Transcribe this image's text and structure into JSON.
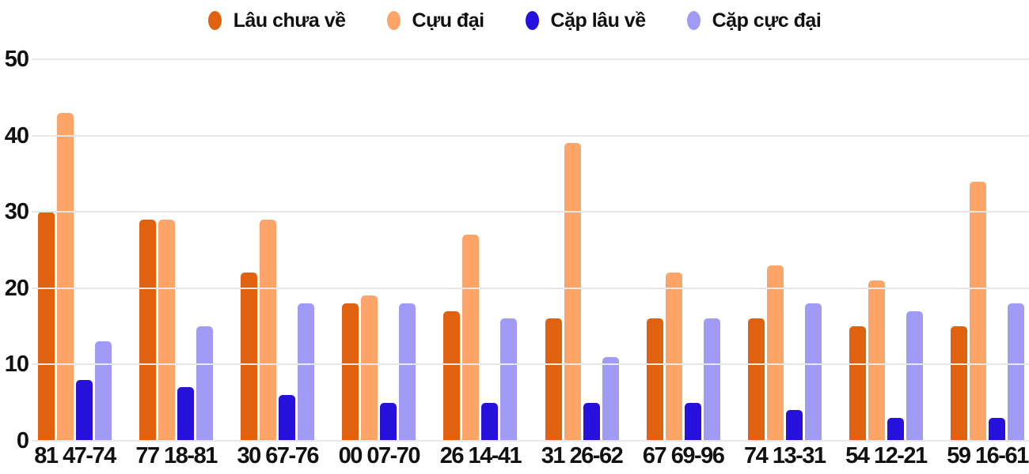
{
  "legend": {
    "items": [
      {
        "label": "Lâu chưa về",
        "color": "#E06210"
      },
      {
        "label": "Cựu đại",
        "color": "#FDA469"
      },
      {
        "label": "Cặp lâu về",
        "color": "#2511DB"
      },
      {
        "label": "Cặp cực đại",
        "color": "#A29BF6"
      }
    ]
  },
  "colors": {
    "grid": "#e7e7e7",
    "text": "#111111",
    "background": "#ffffff"
  },
  "chart_data": {
    "type": "bar",
    "title": "",
    "xlabel": "",
    "ylabel": "",
    "categories": [
      "81 47-74",
      "77 18-81",
      "30 67-76",
      "00 07-70",
      "26 14-41",
      "31 26-62",
      "67 69-96",
      "74 13-31",
      "54 12-21",
      "59 16-61"
    ],
    "series": [
      {
        "name": "Lâu chưa về",
        "color": "#E06210",
        "values": [
          30,
          29,
          22,
          18,
          17,
          16,
          16,
          16,
          15,
          15
        ]
      },
      {
        "name": "Cựu đại",
        "color": "#FDA469",
        "values": [
          43,
          29,
          29,
          19,
          27,
          39,
          22,
          23,
          21,
          34
        ]
      },
      {
        "name": "Cặp lâu về",
        "color": "#2511DB",
        "values": [
          8,
          7,
          6,
          5,
          5,
          5,
          5,
          4,
          3,
          3
        ]
      },
      {
        "name": "Cặp cực đại",
        "color": "#A29BF6",
        "values": [
          13,
          15,
          18,
          18,
          16,
          11,
          16,
          18,
          17,
          18
        ]
      }
    ],
    "ylim": [
      0,
      50
    ],
    "yticks": [
      0,
      10,
      20,
      30,
      40,
      50
    ],
    "grid": true,
    "legend_position": "top"
  }
}
